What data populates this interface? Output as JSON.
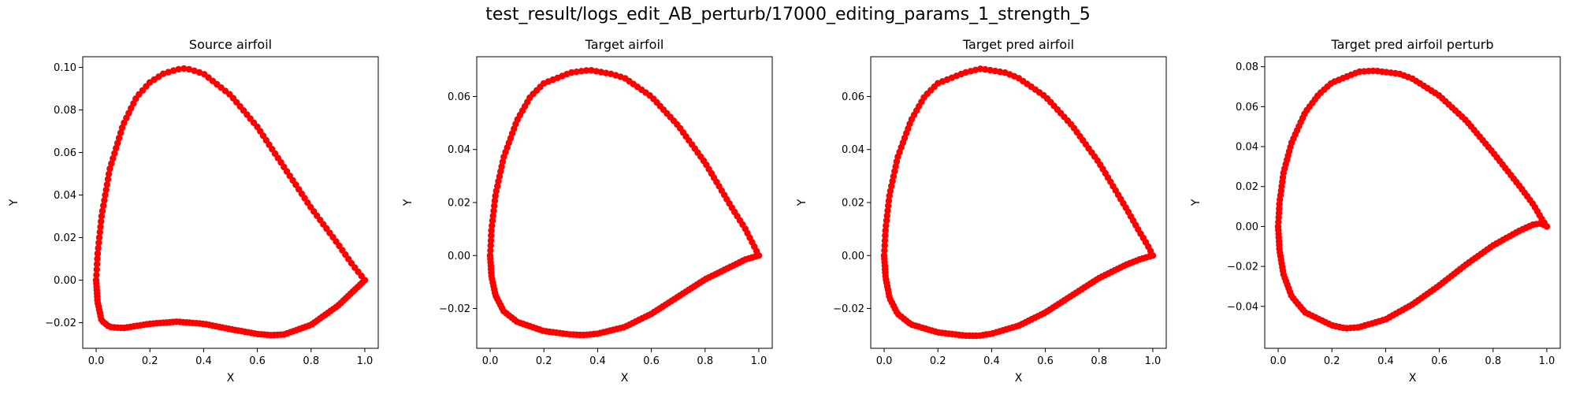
{
  "figure": {
    "suptitle": "test_result/logs_edit_AB_perturb/17000_editing_params_1_strength_5"
  },
  "style": {
    "marker_color": "#ff0000",
    "line_color": "#ff0000",
    "axes_color": "#000000"
  },
  "chart_data": [
    {
      "type": "scatter",
      "title": "Source airfoil",
      "xlabel": "X",
      "ylabel": "Y",
      "xlim": [
        -0.05,
        1.05
      ],
      "ylim": [
        -0.032,
        0.105
      ],
      "xticks": [
        0.0,
        0.2,
        0.4,
        0.6,
        0.8,
        1.0
      ],
      "xtick_labels": [
        "0.0",
        "0.2",
        "0.4",
        "0.6",
        "0.8",
        "1.0"
      ],
      "yticks": [
        -0.02,
        0.0,
        0.02,
        0.04,
        0.06,
        0.08,
        0.1
      ],
      "ytick_labels": [
        "−0.02",
        "0.00",
        "0.02",
        "0.04",
        "0.06",
        "0.08",
        "0.10"
      ],
      "upper": [
        [
          0.0,
          0.0
        ],
        [
          0.005,
          0.012
        ],
        [
          0.02,
          0.03
        ],
        [
          0.05,
          0.052
        ],
        [
          0.1,
          0.073
        ],
        [
          0.15,
          0.086
        ],
        [
          0.2,
          0.093
        ],
        [
          0.25,
          0.097
        ],
        [
          0.3,
          0.099
        ],
        [
          0.33,
          0.0995
        ],
        [
          0.35,
          0.099
        ],
        [
          0.4,
          0.097
        ],
        [
          0.5,
          0.087
        ],
        [
          0.6,
          0.072
        ],
        [
          0.7,
          0.053
        ],
        [
          0.8,
          0.034
        ],
        [
          0.9,
          0.017
        ],
        [
          0.95,
          0.008
        ],
        [
          1.0,
          0.0
        ]
      ],
      "lower": [
        [
          0.0,
          0.0
        ],
        [
          0.005,
          -0.01
        ],
        [
          0.02,
          -0.019
        ],
        [
          0.05,
          -0.022
        ],
        [
          0.1,
          -0.0225
        ],
        [
          0.2,
          -0.0205
        ],
        [
          0.3,
          -0.0195
        ],
        [
          0.4,
          -0.0205
        ],
        [
          0.5,
          -0.023
        ],
        [
          0.6,
          -0.0253
        ],
        [
          0.65,
          -0.0258
        ],
        [
          0.7,
          -0.0255
        ],
        [
          0.8,
          -0.021
        ],
        [
          0.9,
          -0.012
        ],
        [
          0.95,
          -0.006
        ],
        [
          1.0,
          0.0
        ]
      ]
    },
    {
      "type": "scatter",
      "title": "Target airfoil",
      "xlabel": "X",
      "ylabel": "Y",
      "xlim": [
        -0.05,
        1.05
      ],
      "ylim": [
        -0.035,
        0.075
      ],
      "xticks": [
        0.0,
        0.2,
        0.4,
        0.6,
        0.8,
        1.0
      ],
      "xtick_labels": [
        "0.0",
        "0.2",
        "0.4",
        "0.6",
        "0.8",
        "1.0"
      ],
      "yticks": [
        -0.02,
        0.0,
        0.02,
        0.04,
        0.06
      ],
      "ytick_labels": [
        "−0.02",
        "0.00",
        "0.02",
        "0.04",
        "0.06"
      ],
      "upper": [
        [
          0.0,
          0.0
        ],
        [
          0.005,
          0.01
        ],
        [
          0.02,
          0.023
        ],
        [
          0.05,
          0.037
        ],
        [
          0.1,
          0.051
        ],
        [
          0.15,
          0.06
        ],
        [
          0.2,
          0.065
        ],
        [
          0.3,
          0.069
        ],
        [
          0.37,
          0.07
        ],
        [
          0.45,
          0.0685
        ],
        [
          0.5,
          0.067
        ],
        [
          0.6,
          0.06
        ],
        [
          0.7,
          0.049
        ],
        [
          0.8,
          0.035
        ],
        [
          0.9,
          0.018
        ],
        [
          0.95,
          0.01
        ],
        [
          0.98,
          0.004
        ],
        [
          1.0,
          0.0
        ]
      ],
      "lower": [
        [
          0.0,
          0.0
        ],
        [
          0.005,
          -0.008
        ],
        [
          0.02,
          -0.015
        ],
        [
          0.05,
          -0.021
        ],
        [
          0.1,
          -0.025
        ],
        [
          0.2,
          -0.0285
        ],
        [
          0.3,
          -0.0298
        ],
        [
          0.35,
          -0.03
        ],
        [
          0.4,
          -0.0295
        ],
        [
          0.5,
          -0.027
        ],
        [
          0.6,
          -0.022
        ],
        [
          0.7,
          -0.0155
        ],
        [
          0.8,
          -0.009
        ],
        [
          0.9,
          -0.004
        ],
        [
          0.95,
          -0.0015
        ],
        [
          1.0,
          0.0
        ]
      ]
    },
    {
      "type": "scatter",
      "title": "Target pred airfoil",
      "xlabel": "X",
      "ylabel": "Y",
      "xlim": [
        -0.05,
        1.05
      ],
      "ylim": [
        -0.035,
        0.075
      ],
      "xticks": [
        0.0,
        0.2,
        0.4,
        0.6,
        0.8,
        1.0
      ],
      "xtick_labels": [
        "0.0",
        "0.2",
        "0.4",
        "0.6",
        "0.8",
        "1.0"
      ],
      "yticks": [
        -0.02,
        0.0,
        0.02,
        0.04,
        0.06
      ],
      "ytick_labels": [
        "−0.02",
        "0.00",
        "0.02",
        "0.04",
        "0.06"
      ],
      "upper": [
        [
          0.0,
          0.0
        ],
        [
          0.005,
          0.01
        ],
        [
          0.02,
          0.023
        ],
        [
          0.05,
          0.037
        ],
        [
          0.1,
          0.051
        ],
        [
          0.15,
          0.06
        ],
        [
          0.2,
          0.065
        ],
        [
          0.3,
          0.069
        ],
        [
          0.36,
          0.0705
        ],
        [
          0.45,
          0.069
        ],
        [
          0.5,
          0.067
        ],
        [
          0.6,
          0.06
        ],
        [
          0.7,
          0.049
        ],
        [
          0.8,
          0.035
        ],
        [
          0.9,
          0.018
        ],
        [
          0.95,
          0.009
        ],
        [
          0.98,
          0.004
        ],
        [
          1.0,
          0.0
        ]
      ],
      "lower": [
        [
          0.0,
          0.0
        ],
        [
          0.005,
          -0.008
        ],
        [
          0.02,
          -0.016
        ],
        [
          0.05,
          -0.022
        ],
        [
          0.1,
          -0.026
        ],
        [
          0.2,
          -0.029
        ],
        [
          0.3,
          -0.0302
        ],
        [
          0.35,
          -0.0303
        ],
        [
          0.4,
          -0.0295
        ],
        [
          0.5,
          -0.0265
        ],
        [
          0.6,
          -0.0215
        ],
        [
          0.7,
          -0.015
        ],
        [
          0.8,
          -0.0085
        ],
        [
          0.9,
          -0.0035
        ],
        [
          0.95,
          -0.0015
        ],
        [
          1.0,
          0.0
        ]
      ]
    },
    {
      "type": "scatter",
      "title": "Target pred airfoil perturb",
      "xlabel": "X",
      "ylabel": "Y",
      "xlim": [
        -0.05,
        1.05
      ],
      "ylim": [
        -0.061,
        0.085
      ],
      "xticks": [
        0.0,
        0.2,
        0.4,
        0.6,
        0.8,
        1.0
      ],
      "xtick_labels": [
        "0.0",
        "0.2",
        "0.4",
        "0.6",
        "0.8",
        "1.0"
      ],
      "yticks": [
        -0.04,
        -0.02,
        0.0,
        0.02,
        0.04,
        0.06,
        0.08
      ],
      "ytick_labels": [
        "−0.04",
        "−0.02",
        "0.00",
        "0.02",
        "0.04",
        "0.06",
        "0.08"
      ],
      "upper": [
        [
          0.0,
          0.0
        ],
        [
          0.005,
          0.012
        ],
        [
          0.02,
          0.027
        ],
        [
          0.05,
          0.042
        ],
        [
          0.1,
          0.057
        ],
        [
          0.15,
          0.066
        ],
        [
          0.2,
          0.072
        ],
        [
          0.3,
          0.0775
        ],
        [
          0.36,
          0.078
        ],
        [
          0.45,
          0.0765
        ],
        [
          0.5,
          0.074
        ],
        [
          0.6,
          0.0655
        ],
        [
          0.7,
          0.053
        ],
        [
          0.8,
          0.037
        ],
        [
          0.9,
          0.02
        ],
        [
          0.95,
          0.011
        ],
        [
          0.98,
          0.004
        ],
        [
          1.0,
          0.0
        ]
      ],
      "lower": [
        [
          0.0,
          0.0
        ],
        [
          0.005,
          -0.012
        ],
        [
          0.02,
          -0.024
        ],
        [
          0.05,
          -0.035
        ],
        [
          0.1,
          -0.043
        ],
        [
          0.2,
          -0.0495
        ],
        [
          0.25,
          -0.051
        ],
        [
          0.3,
          -0.0505
        ],
        [
          0.4,
          -0.0465
        ],
        [
          0.5,
          -0.039
        ],
        [
          0.6,
          -0.0295
        ],
        [
          0.7,
          -0.019
        ],
        [
          0.8,
          -0.0095
        ],
        [
          0.9,
          -0.002
        ],
        [
          0.95,
          0.001
        ],
        [
          0.98,
          0.0015
        ],
        [
          1.0,
          0.0
        ]
      ]
    }
  ]
}
